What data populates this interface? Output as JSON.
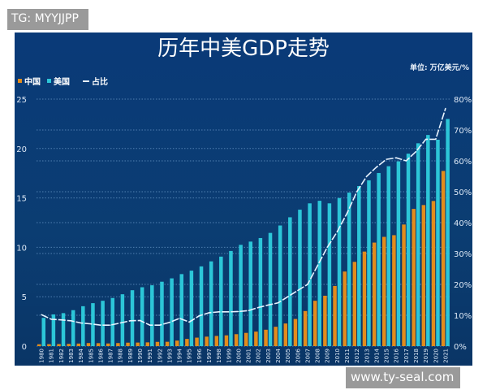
{
  "watermarks": {
    "top_left": "TG: MYYJJPP",
    "bottom_right": "www.ty-seal.com"
  },
  "colors": {
    "background": "#0b3a70",
    "china": "#e28c1c",
    "usa": "#2cc6d8",
    "ratio_line": "#e8f4ff"
  },
  "chart_data": {
    "type": "bar",
    "title": "历年中美GDP走势",
    "unit_label": "单位: 万亿美元/%",
    "legend": [
      "中国",
      "美国",
      "占比"
    ],
    "legend_position": "top-left",
    "grid": true,
    "categories": [
      "1980",
      "1981",
      "1982",
      "1983",
      "1984",
      "1985",
      "1986",
      "1987",
      "1988",
      "1989",
      "1990",
      "1991",
      "1992",
      "1993",
      "1994",
      "1995",
      "1996",
      "1997",
      "1998",
      "1999",
      "2000",
      "2001",
      "2002",
      "2003",
      "2004",
      "2005",
      "2006",
      "2007",
      "2008",
      "2009",
      "2010",
      "2011",
      "2012",
      "2013",
      "2014",
      "2015",
      "2016",
      "2017",
      "2018",
      "2019",
      "2020",
      "2021"
    ],
    "yleft": {
      "lim": [
        0,
        25
      ],
      "ticks": [
        "0",
        "5",
        "10",
        "15",
        "20",
        "25"
      ]
    },
    "yright": {
      "lim": [
        0,
        80
      ],
      "ticks": [
        "0%",
        "10%",
        "20%",
        "30%",
        "40%",
        "50%",
        "60%",
        "70%",
        "80%"
      ]
    },
    "series": [
      {
        "name": "中国",
        "type": "bar",
        "axis": "left",
        "values": [
          0.19,
          0.2,
          0.21,
          0.23,
          0.26,
          0.31,
          0.3,
          0.27,
          0.31,
          0.35,
          0.36,
          0.38,
          0.43,
          0.44,
          0.56,
          0.73,
          0.86,
          0.96,
          1.03,
          1.09,
          1.21,
          1.34,
          1.47,
          1.66,
          1.96,
          2.29,
          2.75,
          3.55,
          4.59,
          5.1,
          6.09,
          7.55,
          8.53,
          9.57,
          10.48,
          11.06,
          11.23,
          12.31,
          13.89,
          14.28,
          14.69,
          17.73
        ]
      },
      {
        "name": "美国",
        "type": "bar",
        "axis": "left",
        "values": [
          2.86,
          3.21,
          3.34,
          3.64,
          4.04,
          4.35,
          4.59,
          4.87,
          5.25,
          5.66,
          5.96,
          6.16,
          6.52,
          6.86,
          7.29,
          7.64,
          8.07,
          8.58,
          9.06,
          9.63,
          10.25,
          10.58,
          10.94,
          11.46,
          12.21,
          13.04,
          13.81,
          14.45,
          14.71,
          14.45,
          14.99,
          15.54,
          16.2,
          16.78,
          17.52,
          18.21,
          18.7,
          19.48,
          20.53,
          21.37,
          20.89,
          22.99
        ]
      },
      {
        "name": "占比",
        "type": "line",
        "axis": "right",
        "values": [
          10.2,
          8.7,
          8.5,
          8.2,
          7.5,
          7.2,
          6.8,
          6.8,
          7.5,
          8.2,
          8.3,
          6.8,
          6.8,
          7.7,
          9.0,
          7.8,
          9.8,
          10.8,
          11.1,
          11.1,
          11.2,
          11.5,
          12.5,
          13.3,
          14.0,
          16.0,
          18.0,
          20.0,
          26.0,
          32.0,
          37.0,
          43.0,
          50.0,
          55.0,
          58.0,
          60.5,
          61.0,
          60.0,
          63.0,
          67.0,
          67.0,
          77.0
        ]
      }
    ]
  }
}
